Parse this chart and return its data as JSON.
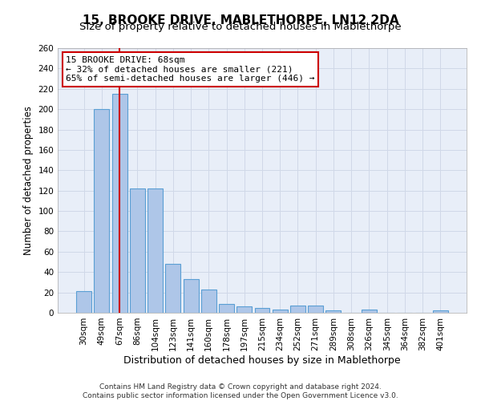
{
  "title": "15, BROOKE DRIVE, MABLETHORPE, LN12 2DA",
  "subtitle": "Size of property relative to detached houses in Mablethorpe",
  "xlabel": "Distribution of detached houses by size in Mablethorpe",
  "ylabel": "Number of detached properties",
  "categories": [
    "30sqm",
    "49sqm",
    "67sqm",
    "86sqm",
    "104sqm",
    "123sqm",
    "141sqm",
    "160sqm",
    "178sqm",
    "197sqm",
    "215sqm",
    "234sqm",
    "252sqm",
    "271sqm",
    "289sqm",
    "308sqm",
    "326sqm",
    "345sqm",
    "364sqm",
    "382sqm",
    "401sqm"
  ],
  "values": [
    21,
    200,
    215,
    122,
    122,
    48,
    33,
    23,
    9,
    6,
    5,
    3,
    7,
    7,
    2,
    0,
    3,
    0,
    0,
    0,
    2
  ],
  "bar_color": "#aec6e8",
  "bar_edge_color": "#5a9fd4",
  "bar_width": 0.85,
  "property_line_index": 2,
  "property_line_color": "#cc0000",
  "annotation_line1": "15 BROOKE DRIVE: 68sqm",
  "annotation_line2": "← 32% of detached houses are smaller (221)",
  "annotation_line3": "65% of semi-detached houses are larger (446) →",
  "annotation_box_color": "#ffffff",
  "annotation_border_color": "#cc0000",
  "ylim": [
    0,
    260
  ],
  "yticks": [
    0,
    20,
    40,
    60,
    80,
    100,
    120,
    140,
    160,
    180,
    200,
    220,
    240,
    260
  ],
  "grid_color": "#d0d8e8",
  "bg_color": "#e8eef8",
  "footer_line1": "Contains HM Land Registry data © Crown copyright and database right 2024.",
  "footer_line2": "Contains public sector information licensed under the Open Government Licence v3.0.",
  "title_fontsize": 11,
  "subtitle_fontsize": 9.5,
  "xlabel_fontsize": 9,
  "ylabel_fontsize": 8.5,
  "tick_fontsize": 7.5,
  "annotation_fontsize": 8,
  "footer_fontsize": 6.5
}
